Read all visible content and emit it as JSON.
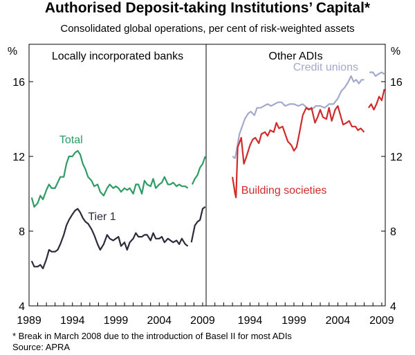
{
  "title": "Authorised Deposit-taking Institutions’ Capital*",
  "subtitle": "Consolidated global operations, per cent of risk-weighted assets",
  "footnote": "*   Break in March 2008 due to the introduction of Basel II for most ADIs",
  "source": "Source: APRA",
  "colors": {
    "total": "#2e9a64",
    "tier1": "#2a2a3a",
    "credit_unions": "#a3a9cb",
    "building_societies": "#d12a2a",
    "axis": "#000000"
  },
  "chart_data": [
    {
      "type": "line",
      "panel_title": "Locally incorporated banks",
      "ylabel_left": "%",
      "ylim": [
        4,
        18
      ],
      "yticks": [
        4,
        8,
        12,
        16
      ],
      "xlim": [
        1989,
        2009.4
      ],
      "xticks": [
        1989,
        1994,
        1999,
        2004,
        2009
      ],
      "grid": false,
      "series": [
        {
          "name": "Total",
          "color_key": "total",
          "segments": [
            [
              [
                1989.3,
                9.8
              ],
              [
                1989.6,
                9.3
              ],
              [
                1990.0,
                9.5
              ],
              [
                1990.3,
                9.9
              ],
              [
                1990.6,
                9.7
              ],
              [
                1991.0,
                10.2
              ],
              [
                1991.3,
                10.5
              ],
              [
                1991.6,
                10.3
              ],
              [
                1992.0,
                10.3
              ],
              [
                1992.3,
                10.6
              ],
              [
                1992.6,
                10.9
              ],
              [
                1993.0,
                10.9
              ],
              [
                1993.3,
                11.6
              ],
              [
                1993.6,
                12.0
              ],
              [
                1994.0,
                12.0
              ],
              [
                1994.3,
                12.2
              ],
              [
                1994.6,
                12.3
              ],
              [
                1994.9,
                12.1
              ],
              [
                1995.2,
                11.6
              ],
              [
                1995.5,
                11.3
              ],
              [
                1995.8,
                10.9
              ],
              [
                1996.2,
                10.7
              ],
              [
                1996.5,
                10.4
              ],
              [
                1996.9,
                10.5
              ],
              [
                1997.2,
                10.1
              ],
              [
                1997.6,
                9.9
              ],
              [
                1998.0,
                10.3
              ],
              [
                1998.3,
                10.5
              ],
              [
                1998.7,
                10.3
              ],
              [
                1999.0,
                10.4
              ],
              [
                1999.3,
                10.3
              ],
              [
                1999.6,
                10.1
              ],
              [
                2000.0,
                10.3
              ],
              [
                2000.3,
                10.2
              ],
              [
                2000.6,
                10.3
              ],
              [
                2001.0,
                10.0
              ],
              [
                2001.3,
                10.5
              ],
              [
                2001.6,
                10.5
              ],
              [
                2002.0,
                10.0
              ],
              [
                2002.3,
                10.7
              ],
              [
                2002.6,
                10.5
              ],
              [
                2003.0,
                10.4
              ],
              [
                2003.3,
                10.8
              ],
              [
                2003.6,
                10.3
              ],
              [
                2004.0,
                10.5
              ],
              [
                2004.3,
                10.6
              ],
              [
                2004.6,
                10.9
              ],
              [
                2005.0,
                10.5
              ],
              [
                2005.3,
                10.5
              ],
              [
                2005.6,
                10.6
              ],
              [
                2006.0,
                10.4
              ],
              [
                2006.3,
                10.5
              ],
              [
                2006.6,
                10.4
              ],
              [
                2007.0,
                10.4
              ],
              [
                2007.3,
                10.3
              ]
            ],
            [
              [
                2007.8,
                10.5
              ],
              [
                2008.1,
                10.8
              ],
              [
                2008.4,
                11.0
              ],
              [
                2008.7,
                11.4
              ],
              [
                2009.0,
                11.6
              ],
              [
                2009.3,
                12.0
              ]
            ]
          ]
        },
        {
          "name": "Tier 1",
          "color_key": "tier1",
          "segments": [
            [
              [
                1989.3,
                6.4
              ],
              [
                1989.6,
                6.1
              ],
              [
                1990.0,
                6.1
              ],
              [
                1990.3,
                6.2
              ],
              [
                1990.6,
                6.0
              ],
              [
                1991.0,
                6.5
              ],
              [
                1991.3,
                7.0
              ],
              [
                1991.6,
                6.9
              ],
              [
                1992.0,
                6.9
              ],
              [
                1992.3,
                7.0
              ],
              [
                1992.6,
                7.3
              ],
              [
                1993.0,
                7.8
              ],
              [
                1993.3,
                8.3
              ],
              [
                1993.6,
                8.6
              ],
              [
                1994.0,
                8.9
              ],
              [
                1994.3,
                9.1
              ],
              [
                1994.6,
                9.2
              ],
              [
                1994.9,
                9.0
              ],
              [
                1995.2,
                8.7
              ],
              [
                1995.5,
                8.5
              ],
              [
                1995.8,
                8.4
              ],
              [
                1996.2,
                8.1
              ],
              [
                1996.5,
                7.8
              ],
              [
                1996.9,
                7.3
              ],
              [
                1997.2,
                7.0
              ],
              [
                1997.6,
                7.3
              ],
              [
                1998.0,
                7.8
              ],
              [
                1998.3,
                7.6
              ],
              [
                1998.7,
                7.5
              ],
              [
                1999.0,
                7.6
              ],
              [
                1999.3,
                7.7
              ],
              [
                1999.6,
                7.2
              ],
              [
                2000.0,
                7.4
              ],
              [
                2000.3,
                7.0
              ],
              [
                2000.6,
                7.4
              ],
              [
                2001.0,
                7.6
              ],
              [
                2001.3,
                7.9
              ],
              [
                2001.6,
                7.7
              ],
              [
                2002.0,
                7.7
              ],
              [
                2002.3,
                7.8
              ],
              [
                2002.6,
                7.8
              ],
              [
                2003.0,
                7.5
              ],
              [
                2003.3,
                7.9
              ],
              [
                2003.6,
                7.6
              ],
              [
                2004.0,
                7.6
              ],
              [
                2004.3,
                7.7
              ],
              [
                2004.6,
                7.4
              ],
              [
                2005.0,
                7.6
              ],
              [
                2005.3,
                7.5
              ],
              [
                2005.6,
                7.4
              ],
              [
                2006.0,
                7.5
              ],
              [
                2006.3,
                7.3
              ],
              [
                2006.6,
                7.6
              ],
              [
                2007.0,
                7.3
              ],
              [
                2007.3,
                7.2
              ]
            ],
            [
              [
                2007.7,
                7.4
              ],
              [
                2008.1,
                8.3
              ],
              [
                2008.4,
                8.5
              ],
              [
                2008.7,
                8.6
              ],
              [
                2009.0,
                9.2
              ],
              [
                2009.3,
                9.3
              ]
            ]
          ]
        }
      ],
      "labels": [
        {
          "text": "Total",
          "color_key": "total",
          "x": 1992.5,
          "y": 12.7
        },
        {
          "text": "Tier 1",
          "color_key": "tier1",
          "x": 1995.8,
          "y": 8.6
        }
      ]
    },
    {
      "type": "line",
      "panel_title": "Other ADIs",
      "ylabel_right": "%",
      "ylim": [
        4,
        18
      ],
      "yticks": [
        4,
        8,
        12,
        16
      ],
      "xlim": [
        1989,
        2009.4
      ],
      "xticks": [
        1994,
        1999,
        2004,
        2009
      ],
      "grid": false,
      "series": [
        {
          "name": "Credit unions",
          "color_key": "credit_unions",
          "segments": [
            [
              [
                1992.0,
                12.0
              ],
              [
                1992.3,
                11.9
              ],
              [
                1992.5,
                12.4
              ],
              [
                1992.8,
                13.2
              ],
              [
                1993.1,
                13.6
              ],
              [
                1993.4,
                14.0
              ],
              [
                1993.8,
                14.3
              ],
              [
                1994.1,
                14.4
              ],
              [
                1994.5,
                14.2
              ],
              [
                1994.8,
                14.6
              ],
              [
                1995.2,
                14.6
              ],
              [
                1995.6,
                14.7
              ],
              [
                1996.0,
                14.8
              ],
              [
                1996.4,
                14.7
              ],
              [
                1996.8,
                14.8
              ],
              [
                1997.2,
                14.9
              ],
              [
                1997.6,
                14.9
              ],
              [
                1998.0,
                14.7
              ],
              [
                1998.5,
                14.8
              ],
              [
                1999.0,
                14.8
              ],
              [
                1999.5,
                14.7
              ],
              [
                2000.0,
                14.8
              ],
              [
                2000.5,
                14.6
              ],
              [
                2001.0,
                14.5
              ],
              [
                2001.5,
                14.7
              ],
              [
                2002.0,
                14.7
              ],
              [
                2002.5,
                14.6
              ],
              [
                2003.0,
                14.8
              ],
              [
                2003.5,
                14.8
              ],
              [
                2004.0,
                15.1
              ],
              [
                2004.4,
                15.5
              ],
              [
                2004.8,
                15.7
              ],
              [
                2005.2,
                16.0
              ],
              [
                2005.5,
                16.3
              ],
              [
                2005.8,
                16.0
              ],
              [
                2006.1,
                16.1
              ],
              [
                2006.4,
                15.9
              ],
              [
                2006.7,
                16.1
              ],
              [
                2007.0,
                16.1
              ]
            ],
            [
              [
                2007.6,
                16.5
              ],
              [
                2008.0,
                16.5
              ],
              [
                2008.3,
                16.3
              ],
              [
                2008.6,
                16.4
              ],
              [
                2009.0,
                16.5
              ],
              [
                2009.3,
                16.4
              ]
            ]
          ]
        },
        {
          "name": "Building societies",
          "color_key": "building_societies",
          "segments": [
            [
              [
                1992.0,
                10.9
              ],
              [
                1992.3,
                10.0
              ],
              [
                1992.4,
                9.8
              ],
              [
                1992.6,
                12.5
              ],
              [
                1993.0,
                13.0
              ],
              [
                1993.3,
                11.6
              ],
              [
                1993.6,
                12.0
              ],
              [
                1994.0,
                12.6
              ],
              [
                1994.3,
                12.9
              ],
              [
                1994.6,
                13.0
              ],
              [
                1995.0,
                12.7
              ],
              [
                1995.3,
                13.2
              ],
              [
                1995.7,
                13.3
              ],
              [
                1996.0,
                13.1
              ],
              [
                1996.3,
                13.4
              ],
              [
                1996.7,
                13.3
              ],
              [
                1997.0,
                13.8
              ],
              [
                1997.3,
                13.5
              ],
              [
                1997.7,
                13.6
              ],
              [
                1998.0,
                13.2
              ],
              [
                1998.3,
                12.8
              ],
              [
                1998.7,
                12.6
              ],
              [
                1999.0,
                12.3
              ],
              [
                1999.3,
                12.5
              ],
              [
                1999.6,
                13.2
              ],
              [
                2000.0,
                14.2
              ],
              [
                2000.4,
                14.6
              ],
              [
                2000.7,
                14.5
              ],
              [
                2001.0,
                14.6
              ],
              [
                2001.4,
                13.8
              ],
              [
                2001.7,
                14.1
              ],
              [
                2002.0,
                14.5
              ],
              [
                2002.3,
                14.1
              ],
              [
                2002.7,
                14.0
              ],
              [
                2003.0,
                14.6
              ],
              [
                2003.3,
                13.9
              ],
              [
                2003.7,
                14.5
              ],
              [
                2004.0,
                14.7
              ],
              [
                2004.3,
                14.2
              ],
              [
                2004.6,
                13.7
              ],
              [
                2005.0,
                13.8
              ],
              [
                2005.3,
                13.9
              ],
              [
                2005.6,
                13.6
              ],
              [
                2006.0,
                13.6
              ],
              [
                2006.3,
                13.4
              ],
              [
                2006.6,
                13.5
              ],
              [
                2007.0,
                13.3
              ]
            ],
            [
              [
                2007.5,
                14.6
              ],
              [
                2007.8,
                14.8
              ],
              [
                2008.1,
                14.5
              ],
              [
                2008.4,
                14.8
              ],
              [
                2008.7,
                15.2
              ],
              [
                2009.0,
                15.0
              ],
              [
                2009.3,
                15.6
              ]
            ]
          ]
        }
      ],
      "labels": [
        {
          "text": "Credit unions",
          "color_key": "credit_unions",
          "x": 1998.9,
          "y": 16.6
        },
        {
          "text": "Building societies",
          "color_key": "building_societies",
          "x": 1993.0,
          "y": 10.0
        }
      ]
    }
  ]
}
